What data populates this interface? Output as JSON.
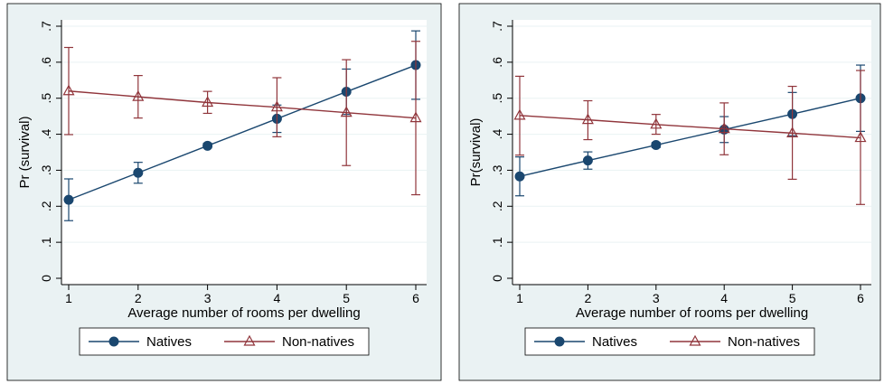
{
  "colors": {
    "natives": "#1a476f",
    "non_natives": "#90353b",
    "plot_bg": "#ffffff",
    "outer_bg": "#eaf2f3",
    "grid": "#eaf2f3"
  },
  "chart_data": [
    {
      "type": "line",
      "xlabel": "Average number of rooms per dwelling",
      "ylabel": "Pr (survival)",
      "x": [
        1,
        2,
        3,
        4,
        5,
        6
      ],
      "xticks": [
        "1",
        "2",
        "3",
        "4",
        "5",
        "6"
      ],
      "ylim": [
        0,
        0.7
      ],
      "yticks": [
        0,
        0.1,
        0.2,
        0.3,
        0.4,
        0.5,
        0.6,
        0.7
      ],
      "ytick_labels": [
        "0",
        ".1",
        ".2",
        ".3",
        ".4",
        ".5",
        ".6",
        ".7"
      ],
      "grid": true,
      "legend_position": "bottom",
      "series": [
        {
          "name": "Natives",
          "marker": "circle",
          "values": [
            0.218,
            0.293,
            0.368,
            0.443,
            0.518,
            0.592
          ],
          "ci_low": [
            0.16,
            0.264,
            0.362,
            0.405,
            0.455,
            0.497
          ],
          "ci_high": [
            0.276,
            0.322,
            0.375,
            0.481,
            0.581,
            0.687
          ]
        },
        {
          "name": "Non-natives",
          "marker": "triangle",
          "values": [
            0.52,
            0.504,
            0.488,
            0.475,
            0.46,
            0.445
          ],
          "ci_low": [
            0.399,
            0.445,
            0.458,
            0.393,
            0.313,
            0.232
          ],
          "ci_high": [
            0.641,
            0.563,
            0.519,
            0.557,
            0.607,
            0.658
          ]
        }
      ]
    },
    {
      "type": "line",
      "xlabel": "Average number of rooms per dwelling",
      "ylabel": "Pr(survival)",
      "x": [
        1,
        2,
        3,
        4,
        5,
        6
      ],
      "xticks": [
        "1",
        "2",
        "3",
        "4",
        "5",
        "6"
      ],
      "ylim": [
        0,
        0.7
      ],
      "yticks": [
        0,
        0.1,
        0.2,
        0.3,
        0.4,
        0.5,
        0.6,
        0.7
      ],
      "ytick_labels": [
        "0",
        ".1",
        ".2",
        ".3",
        ".4",
        ".5",
        ".6",
        ".7"
      ],
      "grid": true,
      "legend_position": "bottom",
      "series": [
        {
          "name": "Natives",
          "marker": "circle",
          "values": [
            0.283,
            0.327,
            0.37,
            0.413,
            0.456,
            0.5
          ],
          "ci_low": [
            0.229,
            0.303,
            0.363,
            0.377,
            0.396,
            0.408
          ],
          "ci_high": [
            0.337,
            0.351,
            0.377,
            0.449,
            0.516,
            0.592
          ]
        },
        {
          "name": "Non-natives",
          "marker": "triangle",
          "values": [
            0.452,
            0.44,
            0.427,
            0.415,
            0.403,
            0.39
          ],
          "ci_low": [
            0.342,
            0.385,
            0.4,
            0.343,
            0.275,
            0.205
          ],
          "ci_high": [
            0.561,
            0.493,
            0.455,
            0.487,
            0.533,
            0.577
          ]
        }
      ]
    }
  ]
}
